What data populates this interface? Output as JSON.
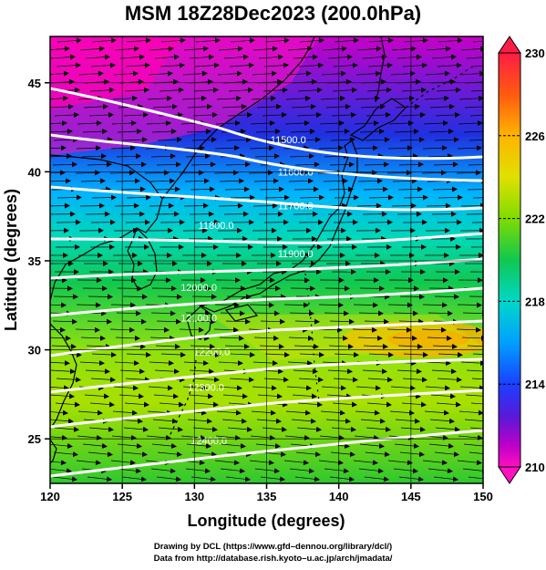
{
  "title": "MSM 18Z28Dec2023 (200.0hPa)",
  "axes": {
    "xlabel": "Longitude (degrees)",
    "ylabel": "Latitude  (degrees)",
    "xlim": [
      120,
      150
    ],
    "ylim": [
      22.5,
      47.6
    ],
    "xticks": [
      "120",
      "125",
      "130",
      "135",
      "140",
      "145",
      "150"
    ],
    "yticks": [
      "25",
      "30",
      "35",
      "40",
      "45"
    ]
  },
  "colorbar": {
    "min": 210,
    "max": 230,
    "labels": [
      "230",
      "226",
      "222",
      "218",
      "214",
      "210"
    ],
    "colors": [
      "#ff1c45",
      "#ff7a10",
      "#ffb400",
      "#e8e000",
      "#a8e600",
      "#58d820",
      "#10c850",
      "#00d8b8",
      "#00a8ff",
      "#1460ff",
      "#2828e0",
      "#6c10d0",
      "#b000c8",
      "#ff10c0"
    ]
  },
  "contours": [
    {
      "label": "11500.0",
      "lon": 136.5,
      "lat": 41.6
    },
    {
      "label": "11600.0",
      "lon": 137.0,
      "lat": 39.8
    },
    {
      "label": "11700.0",
      "lon": 137.0,
      "lat": 37.9
    },
    {
      "label": "11800.0",
      "lon": 131.5,
      "lat": 36.8
    },
    {
      "label": "11900.0",
      "lon": 137.0,
      "lat": 35.2
    },
    {
      "label": "12000.0",
      "lon": 130.3,
      "lat": 33.3
    },
    {
      "label": "12100.0",
      "lon": 130.3,
      "lat": 31.6
    },
    {
      "label": "12200.0",
      "lon": 131.2,
      "lat": 29.7
    },
    {
      "label": "12300.0",
      "lon": 130.8,
      "lat": 27.7
    },
    {
      "label": "12400.0",
      "lon": 131.0,
      "lat": 24.7
    }
  ],
  "credit": {
    "line1": "Drawing by DCL (https://www.gfd–dennou.org/library/dcl/)",
    "line2": "Data from http://database.rish.kyoto–u.ac.jp/arch/jmadata/"
  }
}
